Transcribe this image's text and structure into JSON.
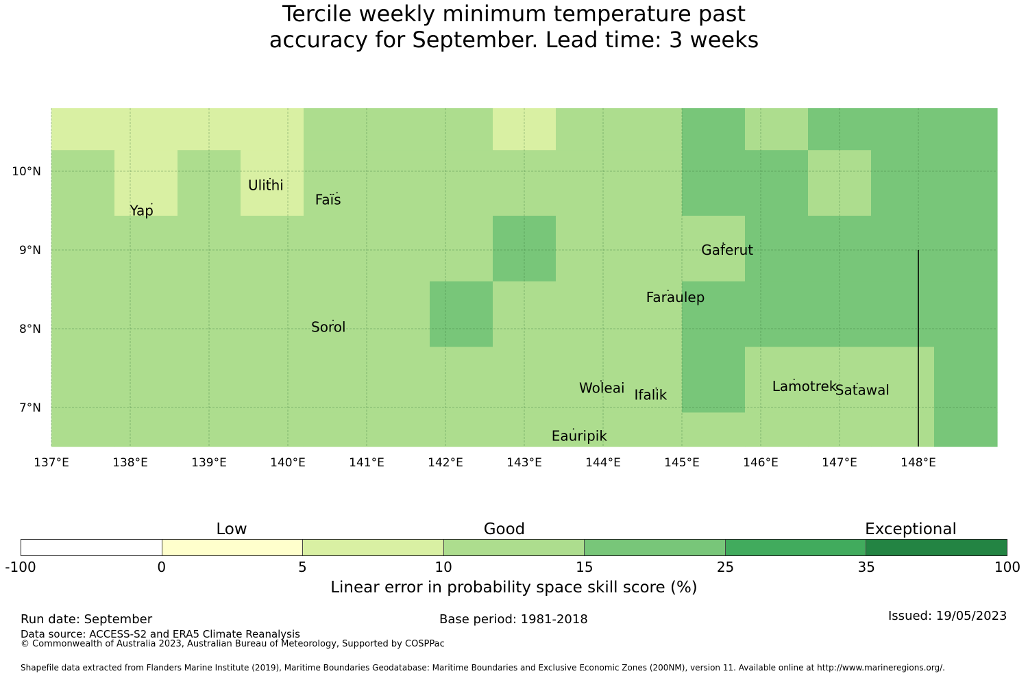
{
  "title": {
    "line1": "Tercile weekly minimum temperature past",
    "line2": "accuracy for September. Lead time: 3 weeks"
  },
  "map": {
    "lon_range": [
      137.0,
      149.0
    ],
    "lat_range": [
      6.5,
      10.8
    ],
    "lon_ticks": [
      137,
      138,
      139,
      140,
      141,
      142,
      143,
      144,
      145,
      146,
      147,
      148
    ],
    "lon_tick_labels": [
      "137°E",
      "138°E",
      "139°E",
      "140°E",
      "141°E",
      "142°E",
      "143°E",
      "144°E",
      "145°E",
      "146°E",
      "147°E",
      "148°E"
    ],
    "lat_ticks": [
      10,
      9,
      8,
      7
    ],
    "lat_tick_labels": [
      "10°N",
      "9°N",
      "8°N",
      "7°N"
    ],
    "grid_cell_size_deg": 0.833,
    "cells_lon_count": 15,
    "cells_lat_count": 6,
    "skill_classes_by_row_from_north": [
      [
        2,
        2,
        2,
        2,
        3,
        3,
        3,
        2,
        3,
        3,
        4,
        3,
        4,
        4,
        4
      ],
      [
        3,
        2,
        3,
        2,
        3,
        3,
        3,
        3,
        3,
        3,
        4,
        4,
        3,
        4,
        4
      ],
      [
        3,
        3,
        3,
        3,
        3,
        3,
        3,
        4,
        3,
        3,
        3,
        4,
        4,
        4,
        4
      ],
      [
        3,
        3,
        3,
        3,
        3,
        3,
        4,
        3,
        3,
        3,
        4,
        4,
        4,
        4,
        4
      ],
      [
        3,
        3,
        3,
        3,
        3,
        3,
        3,
        3,
        3,
        3,
        4,
        3,
        3,
        3,
        4
      ],
      [
        3,
        3,
        3,
        3,
        3,
        3,
        3,
        3,
        3,
        3,
        3,
        3,
        3,
        3,
        4
      ]
    ],
    "islands": [
      {
        "name": "Yap",
        "lon": 138.1,
        "lat": 9.5
      },
      {
        "name": "Ulithi",
        "lon": 139.6,
        "lat": 9.82
      },
      {
        "name": "Faïs",
        "lon": 140.45,
        "lat": 9.64
      },
      {
        "name": "Gaferut",
        "lon": 145.35,
        "lat": 9.0
      },
      {
        "name": "Faraulep",
        "lon": 144.65,
        "lat": 8.4
      },
      {
        "name": "Sorol",
        "lon": 140.4,
        "lat": 8.02
      },
      {
        "name": "Woleai",
        "lon": 143.8,
        "lat": 7.25
      },
      {
        "name": "Ifalik",
        "lon": 144.5,
        "lat": 7.16
      },
      {
        "name": "Lamotrek",
        "lon": 146.25,
        "lat": 7.27
      },
      {
        "name": "Satawal",
        "lon": 147.05,
        "lat": 7.22
      },
      {
        "name": "Eauripik",
        "lon": 143.45,
        "lat": 6.64
      }
    ],
    "boundary_line": {
      "lon": 148.0,
      "lat_from": 6.5,
      "lat_to": 9.0
    }
  },
  "colorbar": {
    "class_colors": [
      "#ffffff",
      "#ffffcc",
      "#d9f0a3",
      "#addd8e",
      "#78c679",
      "#41ab5d",
      "#238443"
    ],
    "tick_labels": [
      "-100",
      "0",
      "5",
      "10",
      "15",
      "25",
      "35",
      "100"
    ],
    "category_labels": [
      "Low",
      "Good",
      "Exceptional"
    ],
    "label": "Linear error in probability space skill score (%)"
  },
  "footer": {
    "run_date": "Run date: September",
    "base_period": "Base period: 1981-2018",
    "issued": "Issued: 19/05/2023",
    "data_source": "Data source: ACCESS-S2 and ERA5 Climate Reanalysis",
    "copyright": "© Commonwealth of Australia 2023, Australian Bureau of Meteorology, Supported by COSPPac",
    "shapefile": "Shapefile data extracted from Flanders Marine Institute (2019), Maritime Boundaries Geodatabase: Maritime Boundaries and Exclusive Economic Zones (200NM), version 11. Available online at http://www.marineregions.org/."
  }
}
